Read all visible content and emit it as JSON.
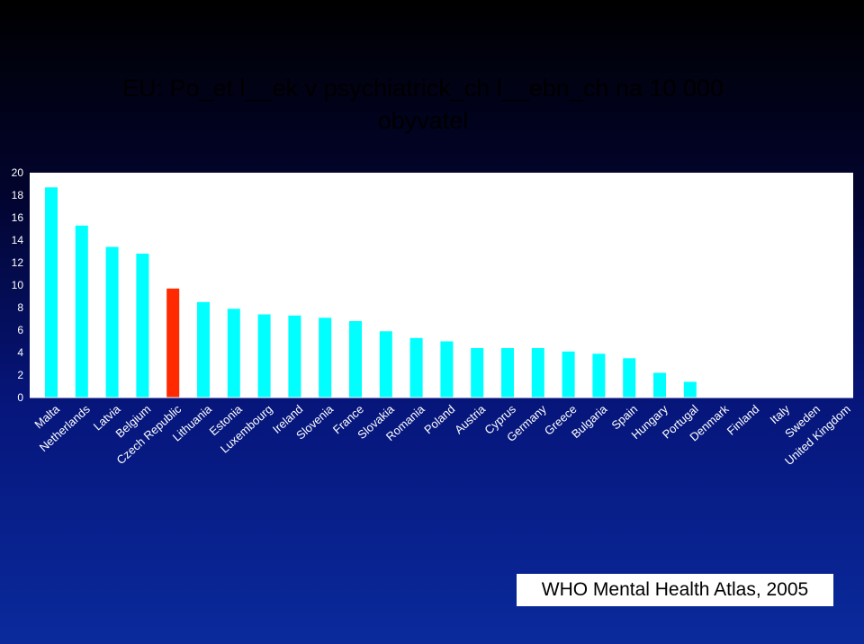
{
  "colors": {
    "bar": "#00ffff",
    "highlight": "#ff2a00",
    "tick_text": "#ffffff",
    "axis": "#ffffff"
  },
  "chart_data": {
    "type": "bar",
    "title_lines": [
      "EU: Po_et l__ek v psychiatrick_ch l__ebn_ch na 10 000",
      "obyvatel"
    ],
    "xlabel": "",
    "ylabel": "",
    "ylim": [
      0,
      20
    ],
    "yticks": [
      0,
      2,
      4,
      6,
      8,
      10,
      12,
      14,
      16,
      18,
      20
    ],
    "grid": false,
    "legend": "none",
    "highlight_category": "Czech Republic",
    "categories": [
      "Malta",
      "Netherlands",
      "Latvia",
      "Belgium",
      "Czech Republic",
      "Lithuania",
      "Estonia",
      "Luxembourg",
      "Ireland",
      "Slovenia",
      "France",
      "Slovakia",
      "Romania",
      "Poland",
      "Austria",
      "Cyprus",
      "Germany",
      "Greece",
      "Bulgaria",
      "Spain",
      "Hungary",
      "Portugal",
      "Denmark",
      "Finland",
      "Italy",
      "Sweden",
      "United Kingdom"
    ],
    "values": [
      18.7,
      15.3,
      13.4,
      12.8,
      9.7,
      8.5,
      7.9,
      7.4,
      7.3,
      7.1,
      6.8,
      5.9,
      5.3,
      5.0,
      4.4,
      4.4,
      4.4,
      4.1,
      3.9,
      3.5,
      2.2,
      1.4,
      0,
      0,
      0,
      0,
      0
    ]
  },
  "source": "WHO Mental Health Atlas, 2005"
}
